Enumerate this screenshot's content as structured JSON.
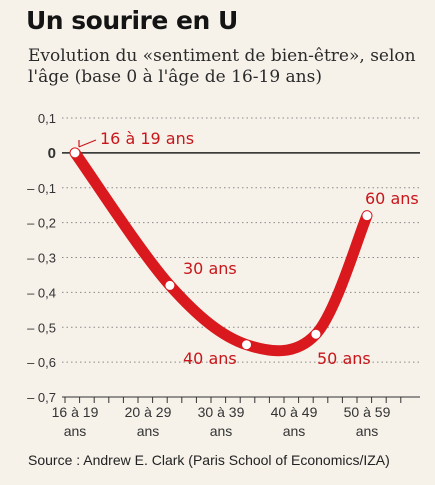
{
  "chart_data": {
    "type": "line",
    "title": "Un sourire en U",
    "subtitle": "Evolution du «sentiment de bien-être», selon l'âge (base 0 à l'âge de 16-19 ans)",
    "categories": [
      "16 à 19 ans",
      "20 à 29 ans",
      "30 à 39 ans",
      "40 à 49 ans",
      "50 à 59 ans",
      "60 ans"
    ],
    "x_ticks": [
      {
        "label": "16 à 19",
        "label2": "ans"
      },
      {
        "label": "20 à 29",
        "label2": "ans"
      },
      {
        "label": "30 à 39",
        "label2": "ans"
      },
      {
        "label": "40 à 49",
        "label2": "ans"
      },
      {
        "label": "50 à 59",
        "label2": "ans"
      }
    ],
    "series": [
      {
        "x": [
          0,
          1.3,
          2.35,
          3.3,
          4.0
        ],
        "values": [
          0,
          -0.38,
          -0.55,
          -0.52,
          -0.18
        ],
        "color": "#d9191d"
      }
    ],
    "point_labels": [
      "16 à 19 ans",
      "30 ans",
      "40 ans",
      "50 ans",
      "60 ans"
    ],
    "y_ticks": [
      0.1,
      0,
      -0.1,
      -0.2,
      -0.3,
      -0.4,
      -0.5,
      -0.6,
      -0.7
    ],
    "y_tick_labels": [
      "0,1",
      "0",
      "– 0,1",
      "– 0,2",
      "– 0,3",
      "– 0,4",
      "– 0,5",
      "– 0,6",
      "– 0,7"
    ],
    "ylim": [
      -0.7,
      0.1
    ],
    "grid": true,
    "source": "Source : Andrew E. Clark (Paris School of Economics/IZA)"
  }
}
